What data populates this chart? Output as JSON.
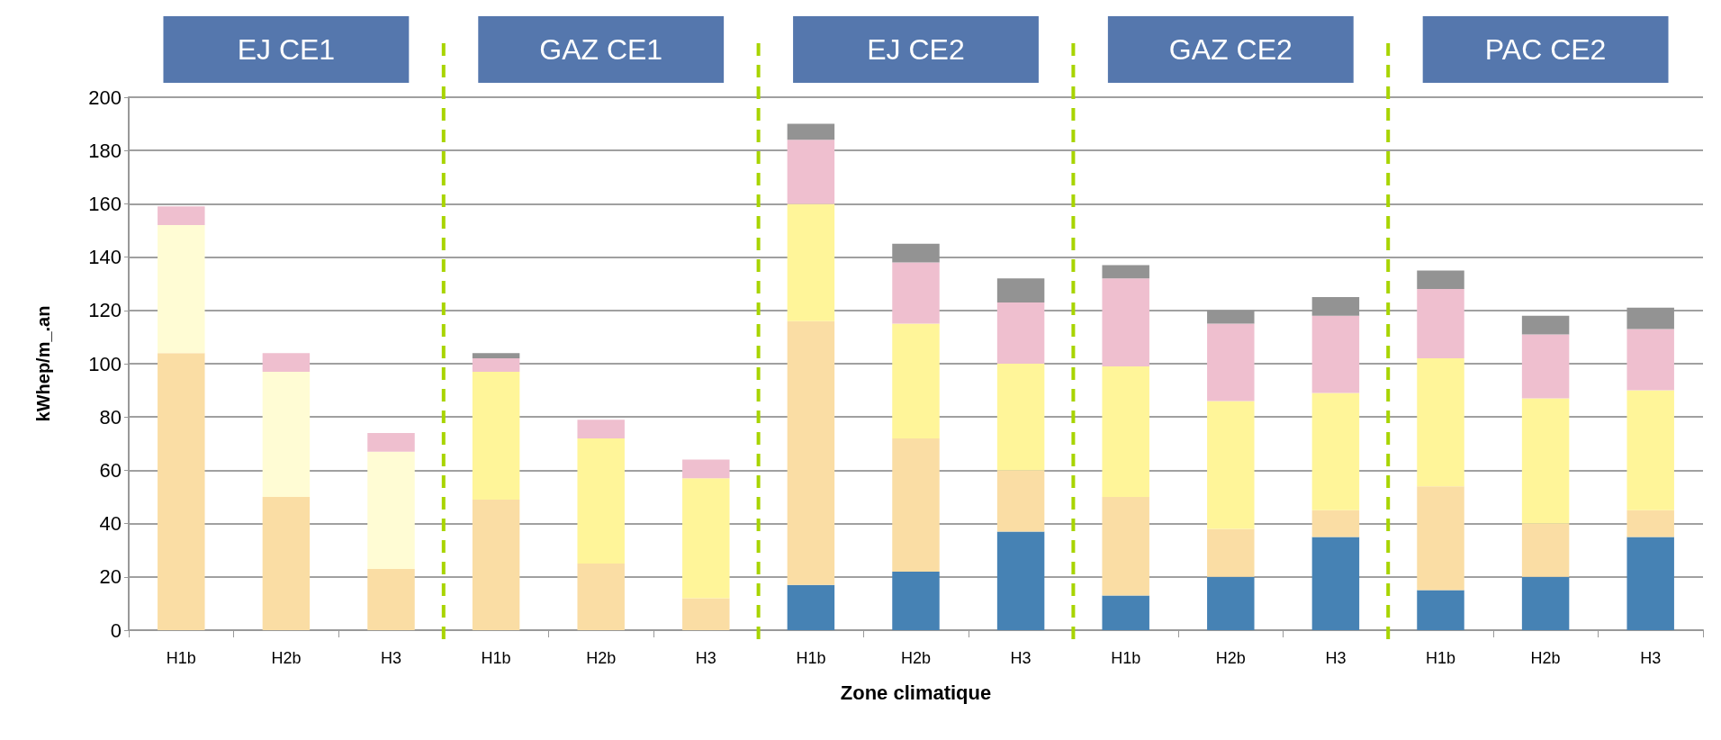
{
  "chart_data": {
    "type": "bar",
    "stacked": true,
    "xlabel": "Zone climatique",
    "ylabel": "kWhep/m_.an",
    "categories": [
      "H1b",
      "H2b",
      "H3",
      "H1b",
      "H2b",
      "H3",
      "H1b",
      "H2b",
      "H3",
      "H1b",
      "H2b",
      "H3",
      "H1b",
      "H2b",
      "H3"
    ],
    "series": [
      {
        "color": "#4682b4",
        "values": [
          null,
          null,
          null,
          null,
          null,
          null,
          17,
          22,
          37,
          13,
          20,
          35,
          15,
          20,
          35
        ]
      },
      {
        "color": "#fadda4",
        "values": [
          104,
          50,
          23,
          49,
          25,
          12,
          99,
          50,
          23,
          37,
          18,
          10,
          39,
          20,
          10
        ]
      },
      {
        "color": "#fff599",
        "colors": [
          "#fffcd4",
          "#fffcd4",
          "#fffcd4",
          "#fff599",
          "#fff599",
          "#fff599",
          "#fff599",
          "#fff599",
          "#fff599",
          "#fff599",
          "#fff599",
          "#fff599",
          "#fff599",
          "#fff599",
          "#fff599"
        ],
        "values": [
          48,
          47,
          44,
          48,
          47,
          45,
          44,
          43,
          40,
          49,
          48,
          44,
          48,
          47,
          45
        ]
      },
      {
        "color": "#efbfcf",
        "values": [
          7,
          7,
          7,
          5,
          7,
          7,
          24,
          23,
          23,
          33,
          29,
          29,
          26,
          24,
          23
        ]
      },
      {
        "color": "#939393",
        "values": [
          null,
          null,
          null,
          2,
          null,
          null,
          6,
          7,
          9,
          5,
          5,
          7,
          7,
          7,
          8
        ]
      }
    ],
    "annotations": [
      "EJ CE1",
      "GAZ CE1",
      "EJ CE2",
      "GAZ CE2",
      "PAC CE2"
    ],
    "ylim": [
      0,
      200
    ],
    "yticks": [
      0,
      20,
      40,
      60,
      80,
      100,
      120,
      140,
      160,
      180,
      200
    ],
    "grid": "y"
  }
}
